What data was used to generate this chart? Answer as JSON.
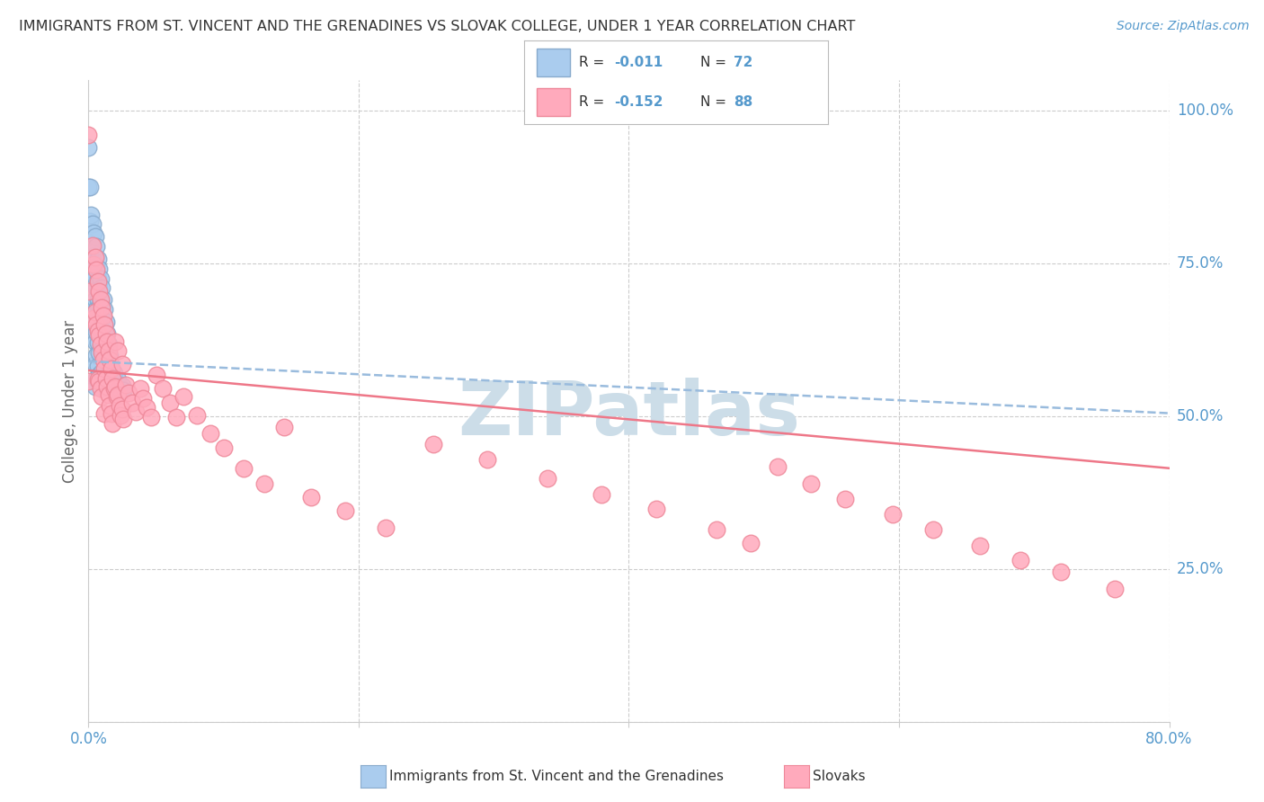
{
  "title": "IMMIGRANTS FROM ST. VINCENT AND THE GRENADINES VS SLOVAK COLLEGE, UNDER 1 YEAR CORRELATION CHART",
  "source": "Source: ZipAtlas.com",
  "ylabel": "College, Under 1 year",
  "xlim": [
    0.0,
    0.8
  ],
  "ylim": [
    0.0,
    1.05
  ],
  "ytick_values": [
    0.0,
    0.25,
    0.5,
    0.75,
    1.0
  ],
  "ytick_labels": [
    "",
    "25.0%",
    "50.0%",
    "75.0%",
    "100.0%"
  ],
  "xtick_values": [
    0.0,
    0.2,
    0.4,
    0.6,
    0.8
  ],
  "xtick_labels": [
    "0.0%",
    "",
    "",
    "",
    "80.0%"
  ],
  "blue_color": "#aaccee",
  "blue_edge_color": "#88aacc",
  "blue_line_color": "#99bbdd",
  "pink_color": "#ffaabc",
  "pink_edge_color": "#ee8899",
  "pink_line_color": "#ee7788",
  "axis_label_color": "#5599cc",
  "grid_color": "#cccccc",
  "watermark_color": "#ccdde8",
  "title_color": "#333333",
  "legend_r_color": "#333333",
  "legend_n_color": "#5599cc",
  "blue_trend": [
    0.0,
    0.8,
    0.59,
    0.505
  ],
  "pink_trend": [
    0.0,
    0.8,
    0.575,
    0.415
  ],
  "blue_x": [
    0.0,
    0.0,
    0.0,
    0.001,
    0.001,
    0.002,
    0.002,
    0.002,
    0.003,
    0.003,
    0.003,
    0.003,
    0.004,
    0.004,
    0.004,
    0.004,
    0.004,
    0.005,
    0.005,
    0.005,
    0.005,
    0.005,
    0.005,
    0.005,
    0.005,
    0.006,
    0.006,
    0.006,
    0.006,
    0.006,
    0.006,
    0.006,
    0.007,
    0.007,
    0.007,
    0.007,
    0.007,
    0.007,
    0.008,
    0.008,
    0.008,
    0.008,
    0.008,
    0.008,
    0.009,
    0.009,
    0.009,
    0.01,
    0.01,
    0.01,
    0.01,
    0.01,
    0.011,
    0.011,
    0.012,
    0.012,
    0.013,
    0.013,
    0.014,
    0.015,
    0.015,
    0.016,
    0.017,
    0.018,
    0.019,
    0.02,
    0.021,
    0.022,
    0.023,
    0.024,
    0.025,
    0.026
  ],
  "blue_y": [
    0.94,
    0.875,
    0.785,
    0.875,
    0.82,
    0.83,
    0.78,
    0.72,
    0.815,
    0.768,
    0.72,
    0.672,
    0.8,
    0.762,
    0.722,
    0.682,
    0.64,
    0.795,
    0.76,
    0.728,
    0.692,
    0.658,
    0.622,
    0.585,
    0.548,
    0.778,
    0.745,
    0.71,
    0.675,
    0.638,
    0.6,
    0.562,
    0.758,
    0.725,
    0.692,
    0.658,
    0.62,
    0.582,
    0.742,
    0.71,
    0.678,
    0.642,
    0.605,
    0.568,
    0.725,
    0.688,
    0.65,
    0.71,
    0.678,
    0.645,
    0.61,
    0.572,
    0.692,
    0.655,
    0.675,
    0.638,
    0.655,
    0.618,
    0.635,
    0.618,
    0.582,
    0.598,
    0.578,
    0.558,
    0.57,
    0.558,
    0.548,
    0.56,
    0.548,
    0.54,
    0.55,
    0.542
  ],
  "pink_x": [
    0.0,
    0.0,
    0.0,
    0.003,
    0.004,
    0.004,
    0.005,
    0.005,
    0.006,
    0.006,
    0.007,
    0.007,
    0.007,
    0.008,
    0.008,
    0.008,
    0.009,
    0.009,
    0.009,
    0.01,
    0.01,
    0.01,
    0.011,
    0.011,
    0.012,
    0.012,
    0.012,
    0.013,
    0.013,
    0.014,
    0.014,
    0.015,
    0.015,
    0.016,
    0.016,
    0.017,
    0.017,
    0.018,
    0.018,
    0.019,
    0.02,
    0.02,
    0.021,
    0.022,
    0.022,
    0.023,
    0.024,
    0.025,
    0.025,
    0.026,
    0.028,
    0.03,
    0.032,
    0.035,
    0.038,
    0.04,
    0.043,
    0.046,
    0.05,
    0.055,
    0.06,
    0.065,
    0.07,
    0.08,
    0.09,
    0.1,
    0.115,
    0.13,
    0.145,
    0.165,
    0.19,
    0.22,
    0.255,
    0.295,
    0.34,
    0.38,
    0.42,
    0.465,
    0.49,
    0.51,
    0.535,
    0.56,
    0.595,
    0.625,
    0.66,
    0.69,
    0.72,
    0.76
  ],
  "pink_y": [
    0.96,
    0.705,
    0.558,
    0.78,
    0.748,
    0.66,
    0.76,
    0.67,
    0.74,
    0.65,
    0.72,
    0.64,
    0.56,
    0.705,
    0.632,
    0.558,
    0.692,
    0.618,
    0.545,
    0.678,
    0.605,
    0.532,
    0.665,
    0.592,
    0.65,
    0.578,
    0.505,
    0.636,
    0.562,
    0.622,
    0.548,
    0.608,
    0.535,
    0.592,
    0.518,
    0.578,
    0.505,
    0.562,
    0.488,
    0.545,
    0.622,
    0.548,
    0.532,
    0.608,
    0.535,
    0.518,
    0.502,
    0.585,
    0.512,
    0.495,
    0.552,
    0.538,
    0.522,
    0.508,
    0.545,
    0.53,
    0.515,
    0.498,
    0.568,
    0.545,
    0.522,
    0.498,
    0.532,
    0.502,
    0.472,
    0.448,
    0.415,
    0.39,
    0.482,
    0.368,
    0.345,
    0.318,
    0.455,
    0.43,
    0.398,
    0.372,
    0.348,
    0.315,
    0.292,
    0.418,
    0.39,
    0.365,
    0.34,
    0.315,
    0.288,
    0.265,
    0.245,
    0.218
  ]
}
